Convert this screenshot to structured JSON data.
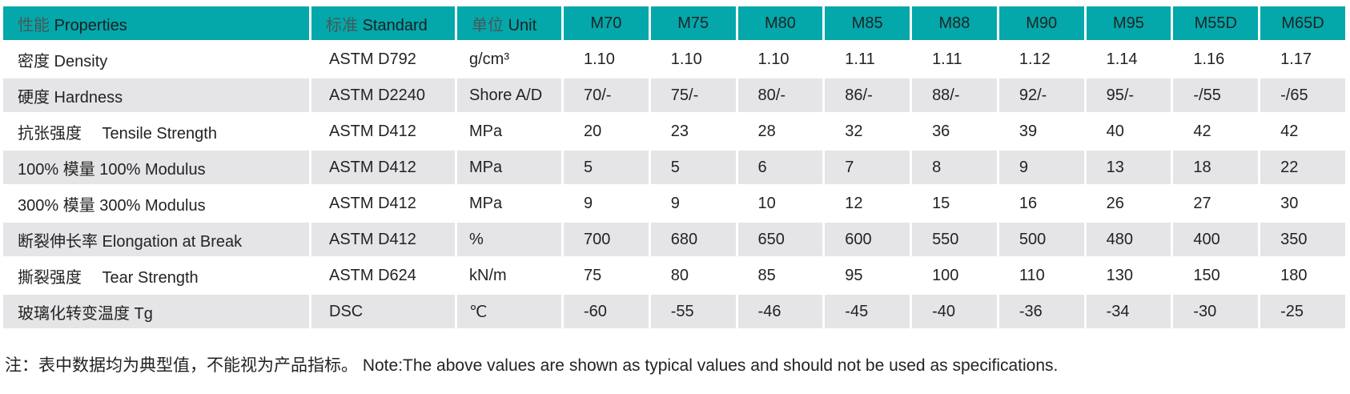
{
  "table": {
    "header": {
      "properties": {
        "zh": "性能",
        "en": "Properties"
      },
      "standard": {
        "zh": "标准",
        "en": "Standard"
      },
      "unit": {
        "zh": "单位",
        "en": "Unit"
      },
      "grades": [
        "M70",
        "M75",
        "M80",
        "M85",
        "M88",
        "M90",
        "M95",
        "M55D",
        "M65D"
      ]
    },
    "rows": [
      {
        "property": "密度 Density",
        "standard": "ASTM D792",
        "unit": "g/cm³",
        "values": [
          "1.10",
          "1.10",
          "1.10",
          "1.11",
          "1.11",
          "1.12",
          "1.14",
          "1.16",
          "1.17"
        ]
      },
      {
        "property": "硬度 Hardness",
        "standard": "ASTM D2240",
        "unit": "Shore A/D",
        "values": [
          "70/-",
          "75/-",
          "80/-",
          "86/-",
          "88/-",
          "92/-",
          "95/-",
          "-/55",
          "-/65"
        ]
      },
      {
        "property": "抗张强度　 Tensile Strength",
        "standard": "ASTM D412",
        "unit": "MPa",
        "values": [
          "20",
          "23",
          "28",
          "32",
          "36",
          "39",
          "40",
          "42",
          "42"
        ]
      },
      {
        "property": "100% 模量 100% Modulus",
        "standard": "ASTM D412",
        "unit": "MPa",
        "values": [
          "5",
          "5",
          "6",
          "7",
          "8",
          "9",
          "13",
          "18",
          "22"
        ]
      },
      {
        "property": "300% 模量 300% Modulus",
        "standard": "ASTM D412",
        "unit": "MPa",
        "values": [
          "9",
          "9",
          "10",
          "12",
          "15",
          "16",
          "26",
          "27",
          "30"
        ]
      },
      {
        "property": "断裂伸长率 Elongation at Break",
        "standard": "ASTM D412",
        "unit": "%",
        "values": [
          "700",
          "680",
          "650",
          "600",
          "550",
          "500",
          "480",
          "400",
          "350"
        ]
      },
      {
        "property": "撕裂强度　 Tear Strength",
        "standard": "ASTM D624",
        "unit": "kN/m",
        "values": [
          "75",
          "80",
          "85",
          "95",
          "100",
          "110",
          "130",
          "150",
          "180"
        ]
      },
      {
        "property": "玻璃化转变温度 Tg",
        "standard": "DSC",
        "unit": "℃",
        "values": [
          "-60",
          "-55",
          "-46",
          "-45",
          "-40",
          "-36",
          "-34",
          "-30",
          "-25"
        ]
      }
    ],
    "note": "注：表中数据均为典型值，不能视为产品指标。 Note:The above values are shown as typical values and should not be used as specifications."
  },
  "colors": {
    "header_bg": "#04a7aa",
    "row_alt_bg": "#e5e5e7",
    "text": "#232323"
  }
}
